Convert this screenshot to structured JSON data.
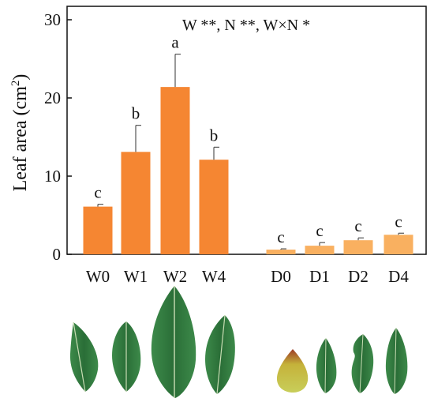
{
  "chart_data": {
    "type": "bar",
    "ylabel": "Leaf area (cm",
    "ylabel_superscript": "2",
    "ylabel_close": ")",
    "ylim": [
      0,
      30
    ],
    "yticks": [
      "0",
      "10",
      "20",
      "30"
    ],
    "annotation": "W **, N **, W×N *",
    "grid": false,
    "groups": [
      {
        "color": "#F58632",
        "categories": [
          "W0",
          "W1",
          "W2",
          "W4"
        ],
        "values": [
          6.1,
          13.1,
          21.4,
          12.1
        ],
        "errors": [
          0.3,
          3.4,
          4.2,
          1.6
        ],
        "letters": [
          "c",
          "b",
          "a",
          "b"
        ]
      },
      {
        "color": "#F9B060",
        "categories": [
          "D0",
          "D1",
          "D2",
          "D4"
        ],
        "values": [
          0.6,
          1.1,
          1.8,
          2.5
        ],
        "errors": [
          0.1,
          0.4,
          0.3,
          0.2
        ],
        "letters": [
          "c",
          "c",
          "c",
          "c"
        ]
      }
    ]
  },
  "photo_panel": {
    "leaf_colors": {
      "main": "#2F7A3E",
      "dark": "#255E31",
      "vein": "#C9DDB4",
      "lesion": "#C5B23A",
      "tip": "#9C3A25"
    }
  }
}
